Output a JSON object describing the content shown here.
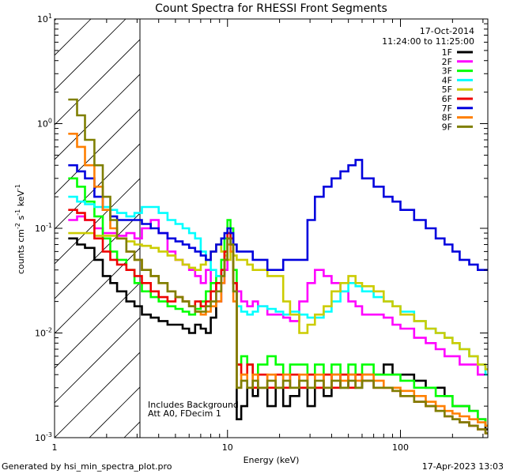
{
  "chart_data": {
    "type": "line",
    "title": "Count Spectra for RHESSI Front Segments",
    "date": "17-Oct-2014",
    "time_range": "11:24:00 to 11:25:00",
    "xlabel": "Energy (keV)",
    "ylabel_parts": {
      "a": "counts cm",
      "b": "-2",
      "c": " s",
      "d": "-1",
      "e": " keV",
      "f": "-1"
    },
    "x_scale": "log",
    "y_scale": "log",
    "xlim": [
      1,
      320
    ],
    "ylim": [
      0.001,
      10
    ],
    "x_ticks": [
      {
        "v": 1,
        "label": "1"
      },
      {
        "v": 10,
        "label": "10"
      },
      {
        "v": 100,
        "label": "100"
      }
    ],
    "y_ticks": [
      {
        "v": 0.001,
        "base": "10",
        "exp": "-3"
      },
      {
        "v": 0.01,
        "base": "10",
        "exp": "-2"
      },
      {
        "v": 0.1,
        "base": "10",
        "exp": "-1"
      },
      {
        "v": 1,
        "base": "10",
        "exp": "0"
      },
      {
        "v": 10,
        "base": "10",
        "exp": "1"
      }
    ],
    "excluded_region": {
      "from": 1,
      "to": 3
    },
    "annotations": [
      "Includes Background",
      "Att A0, FDecim 1"
    ],
    "footer_left": "Generated by hsi_min_spectra_plot.pro",
    "footer_right": "17-Apr-2023 13:03",
    "series": [
      {
        "name": "1F",
        "color": "#000000",
        "x": [
          1.2,
          1.35,
          1.5,
          1.7,
          1.9,
          2.1,
          2.3,
          2.6,
          2.9,
          3.2,
          3.6,
          4.0,
          4.5,
          5.0,
          5.5,
          6.0,
          6.5,
          7.0,
          7.5,
          8.0,
          8.6,
          9.2,
          9.6,
          10.0,
          10.4,
          10.8,
          11.3,
          12,
          13,
          14,
          15,
          17,
          19,
          21,
          23,
          26,
          29,
          32,
          36,
          40,
          45,
          50,
          55,
          60,
          70,
          80,
          90,
          100,
          120,
          140,
          160,
          180,
          200,
          220,
          250,
          280,
          310
        ],
        "y": [
          0.08,
          0.07,
          0.065,
          0.05,
          0.035,
          0.03,
          0.025,
          0.02,
          0.018,
          0.015,
          0.014,
          0.013,
          0.012,
          0.012,
          0.011,
          0.01,
          0.012,
          0.011,
          0.01,
          0.014,
          0.02,
          0.04,
          0.06,
          0.08,
          0.07,
          0.03,
          0.0015,
          0.002,
          0.003,
          0.0025,
          0.003,
          0.002,
          0.003,
          0.002,
          0.0025,
          0.003,
          0.002,
          0.003,
          0.0025,
          0.004,
          0.003,
          0.004,
          0.003,
          0.004,
          0.004,
          0.005,
          0.004,
          0.004,
          0.0035,
          0.003,
          0.003,
          0.0025,
          0.002,
          0.002,
          0.0018,
          0.0015,
          0.0012
        ]
      },
      {
        "name": "2F",
        "color": "#ff00ff",
        "x": [
          1.2,
          1.35,
          1.5,
          1.7,
          1.9,
          2.1,
          2.3,
          2.6,
          2.9,
          3.2,
          3.6,
          4.0,
          4.5,
          5.0,
          5.5,
          6.0,
          6.5,
          7.0,
          7.5,
          8.0,
          8.6,
          9.2,
          9.6,
          10.0,
          10.4,
          10.8,
          11.3,
          12,
          13,
          14,
          15,
          17,
          19,
          21,
          23,
          26,
          29,
          32,
          36,
          40,
          45,
          50,
          55,
          60,
          70,
          80,
          90,
          100,
          120,
          140,
          160,
          180,
          200,
          220,
          250,
          280,
          310
        ],
        "y": [
          0.12,
          0.13,
          0.12,
          0.1,
          0.09,
          0.09,
          0.085,
          0.09,
          0.08,
          0.1,
          0.12,
          0.09,
          0.06,
          0.05,
          0.045,
          0.04,
          0.035,
          0.03,
          0.04,
          0.03,
          0.02,
          0.03,
          0.04,
          0.08,
          0.07,
          0.03,
          0.025,
          0.02,
          0.018,
          0.02,
          0.018,
          0.015,
          0.015,
          0.014,
          0.013,
          0.02,
          0.03,
          0.04,
          0.035,
          0.03,
          0.025,
          0.02,
          0.018,
          0.015,
          0.015,
          0.014,
          0.012,
          0.011,
          0.009,
          0.008,
          0.007,
          0.006,
          0.006,
          0.005,
          0.005,
          0.004,
          0.004
        ]
      },
      {
        "name": "3F",
        "color": "#00ff00",
        "x": [
          1.2,
          1.35,
          1.5,
          1.7,
          1.9,
          2.1,
          2.3,
          2.6,
          2.9,
          3.2,
          3.6,
          4.0,
          4.5,
          5.0,
          5.5,
          6.0,
          6.5,
          7.0,
          7.5,
          8.0,
          8.6,
          9.2,
          9.6,
          10.0,
          10.4,
          10.8,
          11.3,
          12,
          13,
          14,
          15,
          17,
          19,
          21,
          23,
          26,
          29,
          32,
          36,
          40,
          45,
          50,
          55,
          60,
          70,
          80,
          90,
          100,
          120,
          140,
          160,
          180,
          200,
          220,
          250,
          280,
          310
        ],
        "y": [
          0.3,
          0.25,
          0.18,
          0.13,
          0.08,
          0.06,
          0.05,
          0.04,
          0.03,
          0.025,
          0.022,
          0.02,
          0.018,
          0.017,
          0.016,
          0.015,
          0.017,
          0.02,
          0.025,
          0.03,
          0.035,
          0.05,
          0.08,
          0.12,
          0.1,
          0.04,
          0.005,
          0.006,
          0.005,
          0.004,
          0.005,
          0.006,
          0.005,
          0.004,
          0.005,
          0.005,
          0.004,
          0.005,
          0.004,
          0.005,
          0.004,
          0.005,
          0.004,
          0.005,
          0.004,
          0.004,
          0.004,
          0.0035,
          0.003,
          0.003,
          0.0025,
          0.0025,
          0.002,
          0.002,
          0.0018,
          0.0015,
          0.0013
        ]
      },
      {
        "name": "4F",
        "color": "#00ffff",
        "x": [
          1.2,
          1.35,
          1.5,
          1.7,
          1.9,
          2.1,
          2.3,
          2.6,
          2.9,
          3.2,
          3.6,
          4.0,
          4.5,
          5.0,
          5.5,
          6.0,
          6.5,
          7.0,
          7.5,
          8.0,
          8.6,
          9.2,
          9.6,
          10.0,
          10.4,
          10.8,
          11.3,
          12,
          13,
          14,
          15,
          17,
          19,
          21,
          23,
          26,
          29,
          32,
          36,
          40,
          45,
          50,
          55,
          60,
          70,
          80,
          90,
          100,
          120,
          140,
          160,
          180,
          200,
          220,
          250,
          280,
          310
        ],
        "y": [
          0.2,
          0.18,
          0.17,
          0.16,
          0.16,
          0.15,
          0.14,
          0.13,
          0.14,
          0.16,
          0.16,
          0.14,
          0.12,
          0.11,
          0.1,
          0.09,
          0.08,
          0.06,
          0.05,
          0.04,
          0.035,
          0.04,
          0.05,
          0.09,
          0.07,
          0.025,
          0.018,
          0.016,
          0.015,
          0.016,
          0.018,
          0.017,
          0.016,
          0.015,
          0.016,
          0.015,
          0.014,
          0.014,
          0.016,
          0.02,
          0.025,
          0.03,
          0.028,
          0.025,
          0.022,
          0.02,
          0.018,
          0.016,
          0.013,
          0.011,
          0.01,
          0.009,
          0.008,
          0.007,
          0.006,
          0.005,
          0.004
        ]
      },
      {
        "name": "5F",
        "color": "#cccc00",
        "x": [
          1.2,
          1.35,
          1.5,
          1.7,
          1.9,
          2.1,
          2.3,
          2.6,
          2.9,
          3.2,
          3.6,
          4.0,
          4.5,
          5.0,
          5.5,
          6.0,
          6.5,
          7.0,
          7.5,
          8.0,
          8.6,
          9.2,
          9.6,
          10.0,
          10.4,
          10.8,
          11.3,
          12,
          13,
          14,
          15,
          17,
          19,
          21,
          23,
          26,
          29,
          32,
          36,
          40,
          45,
          50,
          55,
          60,
          70,
          80,
          90,
          100,
          120,
          140,
          160,
          180,
          200,
          220,
          250,
          280,
          310
        ],
        "y": [
          0.09,
          0.09,
          0.09,
          0.085,
          0.085,
          0.085,
          0.08,
          0.075,
          0.07,
          0.068,
          0.065,
          0.06,
          0.055,
          0.05,
          0.045,
          0.042,
          0.04,
          0.045,
          0.05,
          0.06,
          0.07,
          0.06,
          0.055,
          0.05,
          0.06,
          0.055,
          0.05,
          0.05,
          0.045,
          0.04,
          0.04,
          0.035,
          0.035,
          0.02,
          0.015,
          0.01,
          0.012,
          0.015,
          0.018,
          0.025,
          0.03,
          0.035,
          0.03,
          0.028,
          0.025,
          0.02,
          0.018,
          0.015,
          0.013,
          0.011,
          0.01,
          0.009,
          0.008,
          0.007,
          0.006,
          0.005,
          0.0045
        ]
      },
      {
        "name": "6F",
        "color": "#ee0000",
        "x": [
          1.2,
          1.35,
          1.5,
          1.7,
          1.9,
          2.1,
          2.3,
          2.6,
          2.9,
          3.2,
          3.6,
          4.0,
          4.5,
          5.0,
          5.5,
          6.0,
          6.5,
          7.0,
          7.5,
          8.0,
          8.6,
          9.2,
          9.6,
          10.0,
          10.4,
          10.8,
          11.3,
          12,
          13,
          14,
          15,
          17,
          19,
          21,
          23,
          26,
          29,
          32,
          36,
          40,
          45,
          50,
          55,
          60,
          70,
          80,
          90,
          100,
          120,
          140,
          160,
          180,
          200,
          220,
          250,
          280,
          310
        ],
        "y": [
          0.15,
          0.14,
          0.12,
          0.08,
          0.06,
          0.05,
          0.045,
          0.04,
          0.035,
          0.03,
          0.025,
          0.022,
          0.02,
          0.022,
          0.02,
          0.018,
          0.02,
          0.018,
          0.02,
          0.025,
          0.03,
          0.04,
          0.06,
          0.09,
          0.08,
          0.03,
          0.005,
          0.004,
          0.005,
          0.003,
          0.004,
          0.003,
          0.004,
          0.003,
          0.004,
          0.003,
          0.004,
          0.003,
          0.004,
          0.003,
          0.004,
          0.003,
          0.004,
          0.0035,
          0.003,
          0.003,
          0.0028,
          0.0025,
          0.0022,
          0.002,
          0.0018,
          0.0016,
          0.0015,
          0.0014,
          0.0013,
          0.0012,
          0.0011
        ]
      },
      {
        "name": "7F",
        "color": "#0000dd",
        "x": [
          1.2,
          1.35,
          1.5,
          1.7,
          1.9,
          2.1,
          2.3,
          2.6,
          2.9,
          3.2,
          3.6,
          4.0,
          4.5,
          5.0,
          5.5,
          6.0,
          6.5,
          7.0,
          7.5,
          8.0,
          8.6,
          9.2,
          9.6,
          10.0,
          10.4,
          10.8,
          11.3,
          12,
          13,
          14,
          15,
          17,
          19,
          21,
          23,
          26,
          29,
          32,
          36,
          40,
          45,
          50,
          55,
          60,
          70,
          80,
          90,
          100,
          120,
          140,
          160,
          180,
          200,
          220,
          250,
          280,
          310
        ],
        "y": [
          0.4,
          0.35,
          0.3,
          0.2,
          0.15,
          0.13,
          0.12,
          0.12,
          0.12,
          0.11,
          0.1,
          0.09,
          0.08,
          0.075,
          0.07,
          0.065,
          0.06,
          0.055,
          0.05,
          0.06,
          0.07,
          0.08,
          0.09,
          0.1,
          0.09,
          0.07,
          0.06,
          0.06,
          0.06,
          0.05,
          0.05,
          0.04,
          0.04,
          0.05,
          0.05,
          0.05,
          0.12,
          0.2,
          0.25,
          0.3,
          0.35,
          0.4,
          0.45,
          0.3,
          0.25,
          0.2,
          0.18,
          0.15,
          0.12,
          0.1,
          0.08,
          0.07,
          0.06,
          0.05,
          0.045,
          0.04,
          0.04
        ]
      },
      {
        "name": "8F",
        "color": "#ff7f00",
        "x": [
          1.2,
          1.35,
          1.5,
          1.7,
          1.9,
          2.1,
          2.3,
          2.6,
          2.9,
          3.2,
          3.6,
          4.0,
          4.5,
          5.0,
          5.5,
          6.0,
          6.5,
          7.0,
          7.5,
          8.0,
          8.6,
          9.2,
          9.6,
          10.0,
          10.4,
          10.8,
          11.3,
          12,
          13,
          14,
          15,
          17,
          19,
          21,
          23,
          26,
          29,
          32,
          36,
          40,
          45,
          50,
          55,
          60,
          70,
          80,
          90,
          100,
          120,
          140,
          160,
          180,
          200,
          220,
          250,
          280,
          310
        ],
        "y": [
          0.8,
          0.6,
          0.4,
          0.25,
          0.15,
          0.1,
          0.08,
          0.06,
          0.05,
          0.04,
          0.035,
          0.03,
          0.025,
          0.022,
          0.02,
          0.018,
          0.016,
          0.015,
          0.016,
          0.018,
          0.02,
          0.03,
          0.05,
          0.07,
          0.06,
          0.02,
          0.003,
          0.004,
          0.003,
          0.004,
          0.003,
          0.004,
          0.003,
          0.004,
          0.003,
          0.004,
          0.003,
          0.004,
          0.003,
          0.004,
          0.0035,
          0.004,
          0.0035,
          0.004,
          0.0035,
          0.003,
          0.003,
          0.0028,
          0.0025,
          0.0022,
          0.002,
          0.0018,
          0.0017,
          0.0016,
          0.0015,
          0.0014,
          0.0013
        ]
      },
      {
        "name": "9F",
        "color": "#7f7f00",
        "x": [
          1.2,
          1.35,
          1.5,
          1.7,
          1.9,
          2.1,
          2.3,
          2.6,
          2.9,
          3.2,
          3.6,
          4.0,
          4.5,
          5.0,
          5.5,
          6.0,
          6.5,
          7.0,
          7.5,
          8.0,
          8.6,
          9.2,
          9.6,
          10.0,
          10.4,
          10.8,
          11.3,
          12,
          13,
          14,
          15,
          17,
          19,
          21,
          23,
          26,
          29,
          32,
          36,
          40,
          45,
          50,
          55,
          60,
          70,
          80,
          90,
          100,
          120,
          140,
          160,
          180,
          200,
          220,
          250,
          280,
          310
        ],
        "y": [
          1.7,
          1.2,
          0.7,
          0.4,
          0.2,
          0.12,
          0.08,
          0.06,
          0.05,
          0.04,
          0.035,
          0.03,
          0.025,
          0.022,
          0.02,
          0.018,
          0.016,
          0.016,
          0.018,
          0.02,
          0.025,
          0.035,
          0.05,
          0.08,
          0.07,
          0.025,
          0.003,
          0.0035,
          0.003,
          0.0035,
          0.003,
          0.0035,
          0.003,
          0.0035,
          0.003,
          0.0035,
          0.003,
          0.0035,
          0.003,
          0.0035,
          0.003,
          0.0035,
          0.003,
          0.0035,
          0.003,
          0.003,
          0.0028,
          0.0025,
          0.0022,
          0.002,
          0.0018,
          0.0016,
          0.0015,
          0.0014,
          0.0013,
          0.0012,
          0.0011
        ]
      }
    ]
  }
}
